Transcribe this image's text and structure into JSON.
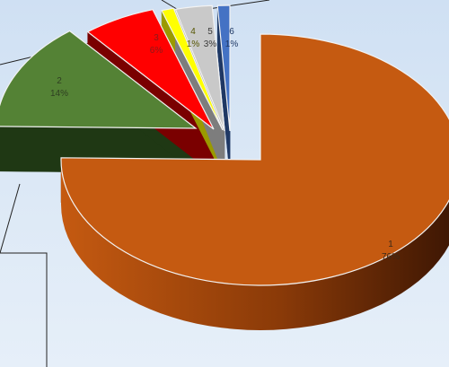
{
  "chart_data": {
    "type": "pie",
    "style": "3d-exploded",
    "title": "",
    "slices": [
      {
        "label": "1",
        "value": 76,
        "percent_label": "76%",
        "color": "#c55a11",
        "side_color": "#8a3a08",
        "text_color": "#3a2a1a"
      },
      {
        "label": "2",
        "value": 14,
        "percent_label": "14%",
        "color": "#548235",
        "side_color": "#1f3814",
        "text_color": "#2f3f22"
      },
      {
        "label": "3",
        "value": 6,
        "percent_label": "6%",
        "color": "#ff0000",
        "side_color": "#7a0000",
        "text_color": "#8a1a1a"
      },
      {
        "label": "4",
        "value": 1,
        "percent_label": "1%",
        "color": "#ffff00",
        "side_color": "#9a9a00",
        "text_color": "#555500"
      },
      {
        "label": "5",
        "value": 3,
        "percent_label": "3%",
        "color": "#c9c9c9",
        "side_color": "#7d7d7d",
        "text_color": "#3a3a3a"
      },
      {
        "label": "6",
        "value": 1,
        "percent_label": "1%",
        "color": "#4472c4",
        "side_color": "#1f3864",
        "text_color": "#1f3864"
      }
    ],
    "legend": "none",
    "grid": false
  }
}
